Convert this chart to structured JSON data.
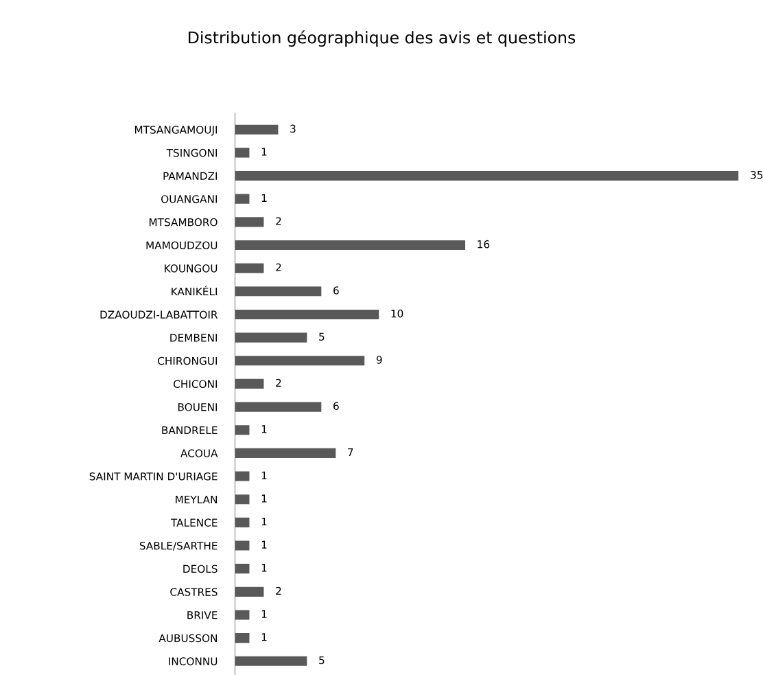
{
  "chart_data": {
    "type": "bar",
    "orientation": "horizontal",
    "title": "Distribution géographique des avis et questions",
    "categories": [
      "MTSANGAMOUJI",
      "TSINGONI",
      "PAMANDZI",
      "OUANGANI",
      "MTSAMBORO",
      "MAMOUDZOU",
      "KOUNGOU",
      "KANIKÉLI",
      "DZAOUDZI-LABATTOIR",
      "DEMBENI",
      "CHIRONGUI",
      "CHICONI",
      "BOUENI",
      "BANDRELE",
      "ACOUA",
      "SAINT MARTIN D'URIAGE",
      "MEYLAN",
      "TALENCE",
      "SABLE/SARTHE",
      "DEOLS",
      "CASTRES",
      "BRIVE",
      "AUBUSSON",
      "INCONNU"
    ],
    "values": [
      3,
      1,
      35,
      1,
      2,
      16,
      2,
      6,
      10,
      5,
      9,
      2,
      6,
      1,
      7,
      1,
      1,
      1,
      1,
      1,
      2,
      1,
      1,
      5
    ],
    "color": "#595959",
    "data_labels": true,
    "grid": false,
    "legend": false
  }
}
